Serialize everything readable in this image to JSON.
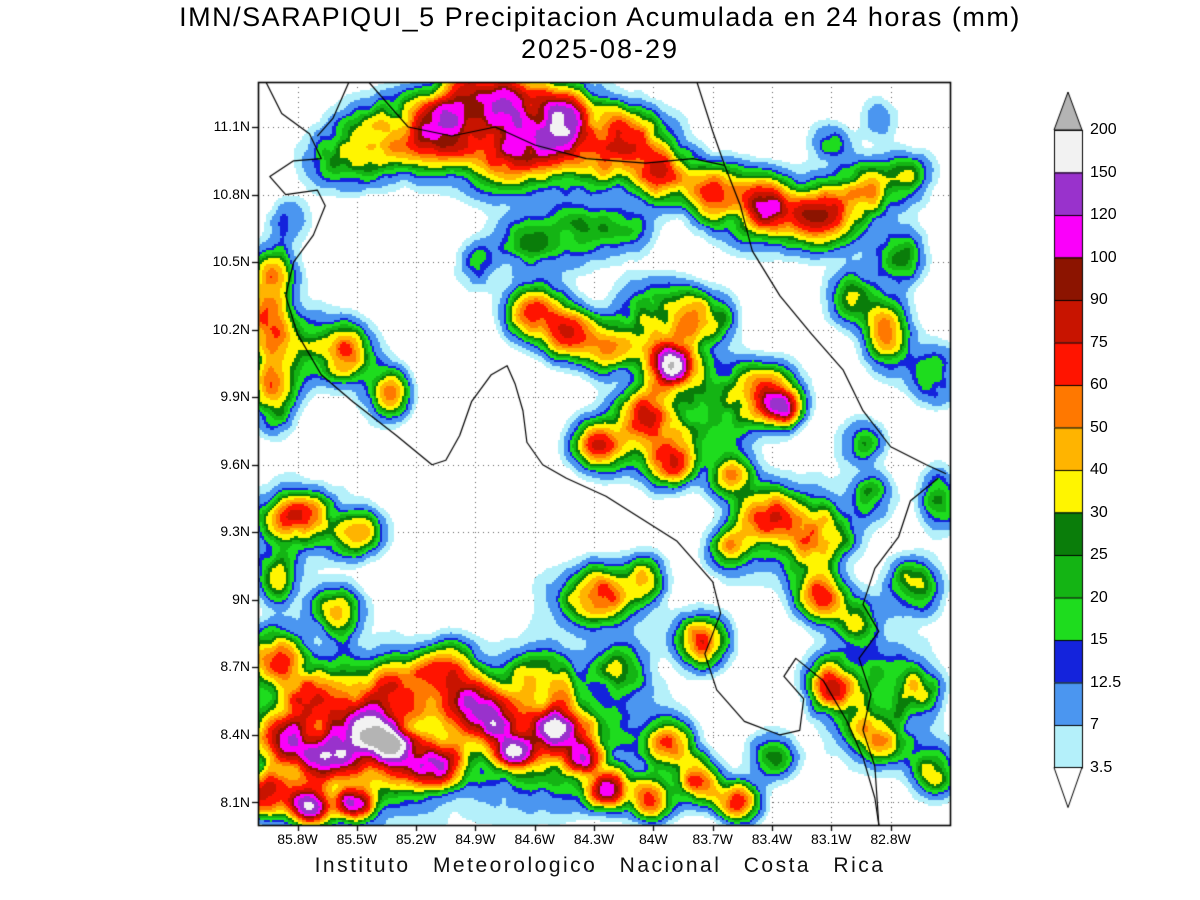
{
  "title": {
    "line1": "IMN/SARAPIQUI_5 Precipitacion Acumulada en 24 horas (mm)",
    "line2": "2025-08-29"
  },
  "footer": {
    "text": "Instituto Meteorologico Nacional Costa Rica"
  },
  "chart_data": {
    "type": "heatmap",
    "title": "IMN/SARAPIQUI_5 Precipitacion Acumulada en 24 horas (mm)",
    "date": "2025-08-29",
    "units": "mm",
    "grid": "dotted",
    "lon_range": [
      -86.0,
      -82.5
    ],
    "lat_range": [
      8.0,
      11.3
    ],
    "x_tick_labels": [
      "85.8W",
      "85.5W",
      "85.2W",
      "84.9W",
      "84.6W",
      "84.3W",
      "84W",
      "83.7W",
      "83.4W",
      "83.1W",
      "82.8W"
    ],
    "y_tick_labels": [
      "11.1N",
      "10.8N",
      "10.5N",
      "10.2N",
      "9.9N",
      "9.6N",
      "9.3N",
      "9N",
      "8.7N",
      "8.4N",
      "8.1N"
    ],
    "colorbar": {
      "labels": [
        "200",
        "150",
        "120",
        "100",
        "90",
        "75",
        "60",
        "50",
        "40",
        "30",
        "25",
        "20",
        "15",
        "12.5",
        "7",
        "3.5"
      ],
      "levels": [
        3.5,
        7,
        12.5,
        15,
        20,
        25,
        30,
        40,
        50,
        60,
        75,
        90,
        100,
        120,
        150,
        200
      ],
      "colors": [
        "#b4f0fa",
        "#4b96f0",
        "#1423dc",
        "#1edc1e",
        "#14b414",
        "#0a7d0a",
        "#fff500",
        "#ffb400",
        "#ff7800",
        "#ff1400",
        "#c81400",
        "#8c1400",
        "#fa00fa",
        "#9932cc",
        "#f2f2f2"
      ],
      "under_color": "#ffffff",
      "over_color": "#b4b4b4",
      "position": "right"
    },
    "cells": [
      [
        -85.35,
        11.05,
        45,
        0.2,
        0.14
      ],
      [
        -85.6,
        10.95,
        26,
        0.14,
        0.12
      ],
      [
        -85.08,
        11.12,
        75,
        0.15,
        0.12
      ],
      [
        -84.85,
        11.24,
        85,
        0.17,
        0.12
      ],
      [
        -84.5,
        11.14,
        95,
        0.2,
        0.13
      ],
      [
        -84.7,
        10.98,
        40,
        0.3,
        0.14
      ],
      [
        -84.6,
        11.05,
        30,
        0.5,
        0.18
      ],
      [
        -84.17,
        11.02,
        70,
        0.16,
        0.12
      ],
      [
        -83.95,
        10.9,
        55,
        0.14,
        0.11
      ],
      [
        -83.7,
        10.82,
        46,
        0.15,
        0.11
      ],
      [
        -83.45,
        10.75,
        56,
        0.14,
        0.11
      ],
      [
        -83.3,
        10.72,
        25,
        0.35,
        0.15
      ],
      [
        -83.16,
        10.7,
        60,
        0.14,
        0.11
      ],
      [
        -82.95,
        10.82,
        45,
        0.12,
        0.1
      ],
      [
        -82.72,
        10.88,
        25,
        0.12,
        0.1
      ],
      [
        -83.11,
        11.04,
        16,
        0.1,
        0.08
      ],
      [
        -82.86,
        11.14,
        13,
        0.09,
        0.08
      ],
      [
        -82.76,
        10.52,
        30,
        0.12,
        0.11
      ],
      [
        -83.0,
        10.34,
        24,
        0.12,
        0.11
      ],
      [
        -84.4,
        10.62,
        26,
        0.15,
        0.12
      ],
      [
        -84.66,
        10.58,
        24,
        0.13,
        0.11
      ],
      [
        -84.15,
        10.64,
        22,
        0.12,
        0.1
      ],
      [
        -85.85,
        10.68,
        14,
        0.1,
        0.1
      ],
      [
        -84.9,
        10.48,
        15,
        0.1,
        0.1
      ],
      [
        -85.92,
        10.44,
        45,
        0.1,
        0.11
      ],
      [
        -85.95,
        10.22,
        50,
        0.1,
        0.14
      ],
      [
        -85.92,
        9.93,
        55,
        0.1,
        0.13
      ],
      [
        -85.78,
        10.12,
        22,
        0.16,
        0.16
      ],
      [
        -85.55,
        10.1,
        48,
        0.12,
        0.11
      ],
      [
        -85.35,
        9.92,
        40,
        0.1,
        0.1
      ],
      [
        -84.6,
        10.28,
        48,
        0.13,
        0.11
      ],
      [
        -84.42,
        10.18,
        56,
        0.12,
        0.1
      ],
      [
        -84.22,
        10.12,
        34,
        0.12,
        0.1
      ],
      [
        -83.98,
        10.28,
        30,
        0.18,
        0.12
      ],
      [
        -83.76,
        10.25,
        58,
        0.12,
        0.1
      ],
      [
        -83.92,
        10.05,
        62,
        0.14,
        0.11
      ],
      [
        -83.9,
        10.05,
        115,
        0.07,
        0.06
      ],
      [
        -83.8,
        9.85,
        22,
        0.3,
        0.2
      ],
      [
        -83.45,
        9.92,
        60,
        0.15,
        0.11
      ],
      [
        -83.36,
        9.86,
        115,
        0.08,
        0.065
      ],
      [
        -84.05,
        9.82,
        52,
        0.12,
        0.1
      ],
      [
        -84.28,
        9.68,
        55,
        0.12,
        0.1
      ],
      [
        -83.93,
        9.62,
        60,
        0.12,
        0.1
      ],
      [
        -83.62,
        9.55,
        35,
        0.11,
        0.09
      ],
      [
        -82.82,
        10.18,
        38,
        0.11,
        0.14
      ],
      [
        -82.58,
        10.0,
        24,
        0.11,
        0.11
      ],
      [
        -83.42,
        9.38,
        55,
        0.13,
        0.1
      ],
      [
        -83.15,
        9.28,
        48,
        0.12,
        0.1
      ],
      [
        -83.62,
        9.22,
        38,
        0.1,
        0.09
      ],
      [
        -82.9,
        9.46,
        24,
        0.1,
        0.09
      ],
      [
        -83.3,
        9.3,
        18,
        0.25,
        0.2
      ],
      [
        -85.8,
        9.36,
        48,
        0.14,
        0.09
      ],
      [
        -85.5,
        9.3,
        42,
        0.12,
        0.09
      ],
      [
        -85.92,
        9.1,
        30,
        0.1,
        0.1
      ],
      [
        -85.6,
        8.95,
        28,
        0.12,
        0.1
      ],
      [
        -85.8,
        9.35,
        18,
        0.25,
        0.15
      ],
      [
        -84.28,
        9.02,
        46,
        0.12,
        0.1
      ],
      [
        -84.05,
        9.1,
        30,
        0.1,
        0.09
      ],
      [
        -83.76,
        8.82,
        62,
        0.11,
        0.1
      ],
      [
        -83.15,
        9.02,
        46,
        0.11,
        0.1
      ],
      [
        -82.98,
        8.9,
        26,
        0.1,
        0.09
      ],
      [
        -82.68,
        9.06,
        30,
        0.12,
        0.11
      ],
      [
        -84.3,
        9.0,
        16,
        0.25,
        0.15
      ],
      [
        -85.9,
        8.75,
        50,
        0.12,
        0.12
      ],
      [
        -85.74,
        8.56,
        70,
        0.13,
        0.11
      ],
      [
        -85.85,
        8.38,
        85,
        0.12,
        0.11
      ],
      [
        -85.62,
        8.3,
        88,
        0.12,
        0.1
      ],
      [
        -85.48,
        8.44,
        75,
        0.12,
        0.1
      ],
      [
        -85.35,
        8.38,
        80,
        0.15,
        0.12
      ],
      [
        -85.33,
        8.36,
        135,
        0.07,
        0.055
      ],
      [
        -85.52,
        8.1,
        125,
        0.08,
        0.06
      ],
      [
        -85.75,
        8.08,
        100,
        0.1,
        0.07
      ],
      [
        -85.98,
        8.14,
        60,
        0.13,
        0.1
      ],
      [
        -85.12,
        8.25,
        75,
        0.12,
        0.09
      ],
      [
        -84.95,
        8.55,
        72,
        0.12,
        0.1
      ],
      [
        -84.8,
        8.45,
        85,
        0.11,
        0.09
      ],
      [
        -84.7,
        8.32,
        115,
        0.08,
        0.06
      ],
      [
        -84.48,
        8.43,
        92,
        0.11,
        0.09
      ],
      [
        -84.35,
        8.3,
        125,
        0.07,
        0.055
      ],
      [
        -84.22,
        8.16,
        85,
        0.1,
        0.08
      ],
      [
        -84.02,
        8.12,
        55,
        0.1,
        0.08
      ],
      [
        -84.55,
        8.65,
        45,
        0.13,
        0.1
      ],
      [
        -85.3,
        8.6,
        55,
        0.15,
        0.11
      ],
      [
        -85.05,
        8.7,
        40,
        0.12,
        0.1
      ],
      [
        -84.15,
        8.7,
        26,
        0.12,
        0.1
      ],
      [
        -85.5,
        8.4,
        35,
        0.45,
        0.3
      ],
      [
        -84.6,
        8.4,
        35,
        0.45,
        0.25
      ],
      [
        -83.78,
        8.2,
        62,
        0.1,
        0.09
      ],
      [
        -83.92,
        8.36,
        45,
        0.1,
        0.09
      ],
      [
        -83.58,
        8.1,
        48,
        0.1,
        0.08
      ],
      [
        -83.4,
        8.3,
        26,
        0.1,
        0.09
      ],
      [
        -83.1,
        8.62,
        50,
        0.1,
        0.09
      ],
      [
        -82.85,
        8.4,
        48,
        0.12,
        0.1
      ],
      [
        -82.66,
        8.6,
        30,
        0.1,
        0.1
      ],
      [
        -82.58,
        8.24,
        34,
        0.1,
        0.1
      ],
      [
        -82.9,
        8.6,
        20,
        0.25,
        0.25
      ],
      [
        -82.95,
        9.7,
        20,
        0.1,
        0.09
      ],
      [
        -82.55,
        9.45,
        22,
        0.1,
        0.12
      ]
    ],
    "coastlines": [
      [
        [
          -85.96,
          11.3
        ],
        [
          -85.88,
          11.16
        ],
        [
          -85.74,
          11.07
        ],
        [
          -85.68,
          10.96
        ],
        [
          -85.82,
          10.95
        ],
        [
          -85.94,
          10.88
        ],
        [
          -85.86,
          10.8
        ],
        [
          -85.7,
          10.82
        ],
        [
          -85.66,
          10.75
        ],
        [
          -85.72,
          10.62
        ],
        [
          -85.82,
          10.5
        ],
        [
          -85.86,
          10.35
        ],
        [
          -85.8,
          10.18
        ],
        [
          -85.68,
          10.0
        ],
        [
          -85.52,
          9.88
        ],
        [
          -85.3,
          9.73
        ],
        [
          -85.12,
          9.6
        ],
        [
          -85.05,
          9.62
        ],
        [
          -84.98,
          9.73
        ],
        [
          -84.92,
          9.88
        ],
        [
          -84.82,
          10.0
        ],
        [
          -84.74,
          10.04
        ],
        [
          -84.7,
          9.96
        ],
        [
          -84.66,
          9.84
        ],
        [
          -84.64,
          9.7
        ],
        [
          -84.56,
          9.6
        ],
        [
          -84.44,
          9.54
        ],
        [
          -84.24,
          9.46
        ],
        [
          -84.06,
          9.36
        ],
        [
          -83.88,
          9.26
        ],
        [
          -83.7,
          9.08
        ],
        [
          -83.66,
          8.94
        ],
        [
          -83.74,
          8.76
        ],
        [
          -83.68,
          8.6
        ],
        [
          -83.54,
          8.46
        ],
        [
          -83.36,
          8.4
        ],
        [
          -83.26,
          8.42
        ],
        [
          -83.24,
          8.56
        ],
        [
          -83.34,
          8.66
        ],
        [
          -83.28,
          8.74
        ],
        [
          -83.14,
          8.64
        ],
        [
          -83.02,
          8.46
        ],
        [
          -82.94,
          8.3
        ],
        [
          -82.88,
          8.12
        ],
        [
          -82.86,
          8.0
        ]
      ],
      [
        [
          -83.78,
          11.3
        ],
        [
          -83.7,
          11.08
        ],
        [
          -83.64,
          10.93
        ],
        [
          -83.56,
          10.75
        ],
        [
          -83.5,
          10.55
        ],
        [
          -83.36,
          10.35
        ],
        [
          -83.2,
          10.18
        ],
        [
          -83.04,
          10.02
        ],
        [
          -82.94,
          9.84
        ],
        [
          -82.8,
          9.68
        ],
        [
          -82.62,
          9.6
        ],
        [
          -82.52,
          9.56
        ]
      ],
      [
        [
          -82.56,
          9.54
        ],
        [
          -82.7,
          9.44
        ],
        [
          -82.76,
          9.28
        ],
        [
          -82.88,
          9.14
        ],
        [
          -82.94,
          8.98
        ],
        [
          -82.86,
          8.86
        ],
        [
          -82.96,
          8.74
        ],
        [
          -82.9,
          8.58
        ],
        [
          -82.94,
          8.42
        ],
        [
          -82.88,
          8.26
        ],
        [
          -82.86,
          8.0
        ]
      ],
      [
        [
          -85.7,
          11.06
        ],
        [
          -85.62,
          11.14
        ],
        [
          -85.54,
          11.3
        ]
      ],
      [
        [
          -85.44,
          11.3
        ],
        [
          -85.24,
          11.1
        ],
        [
          -85.02,
          11.06
        ],
        [
          -84.8,
          11.1
        ],
        [
          -84.6,
          11.02
        ],
        [
          -84.34,
          10.96
        ],
        [
          -84.04,
          10.94
        ],
        [
          -83.8,
          10.96
        ],
        [
          -83.64,
          10.93
        ]
      ]
    ]
  }
}
